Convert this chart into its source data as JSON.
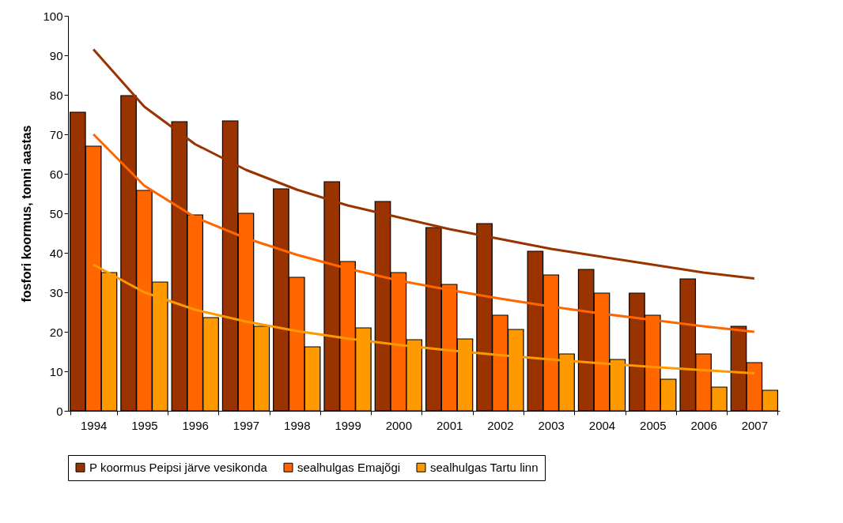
{
  "chart_data": {
    "type": "bar",
    "ylabel": "fosfori koormus, tonni aastas",
    "categories": [
      "1994",
      "1995",
      "1996",
      "1997",
      "1998",
      "1999",
      "2000",
      "2001",
      "2002",
      "2003",
      "2004",
      "2005",
      "2006",
      "2007"
    ],
    "ylim": [
      0,
      100
    ],
    "yticks": [
      0,
      10,
      20,
      30,
      40,
      50,
      60,
      70,
      80,
      90,
      100
    ],
    "legend": "bottom",
    "marker": "none",
    "series": [
      {
        "name": "P koormus Peipsi järve vesikonda",
        "color": "#993300",
        "values": [
          75.6,
          79.8,
          73.2,
          73.4,
          56.2,
          58,
          53,
          46.4,
          47.4,
          40.4,
          35.8,
          29.8,
          33.4,
          21.4
        ]
      },
      {
        "name": "sealhulgas Emajõgi",
        "color": "#ff6600",
        "values": [
          67,
          55.8,
          49.6,
          50,
          33.8,
          37.8,
          35,
          32,
          24.2,
          34.4,
          29.8,
          24.2,
          14.4,
          12.2
        ]
      },
      {
        "name": "sealhulgas Tartu linn",
        "color": "#ff9900",
        "values": [
          35,
          32.6,
          23.6,
          21.4,
          16.2,
          21,
          18,
          18.2,
          20.6,
          14.4,
          13,
          8,
          6,
          5.2
        ]
      },
      {
        "type": "line",
        "color": "#993300",
        "values": [
          91.5,
          77,
          67.5,
          61,
          56,
          52,
          49,
          46,
          43.5,
          41,
          39,
          37,
          35,
          33.5
        ]
      },
      {
        "type": "line",
        "color": "#ff6600",
        "values": [
          70,
          57,
          49,
          43.7,
          39.5,
          36,
          33,
          30.6,
          28.4,
          26.4,
          24.6,
          23,
          21.4,
          20
        ]
      },
      {
        "type": "line",
        "color": "#ff9900",
        "values": [
          37,
          30,
          25.6,
          22.6,
          20.2,
          18.3,
          16.7,
          15.3,
          14.1,
          13,
          12,
          11.1,
          10.3,
          9.5
        ]
      }
    ]
  }
}
